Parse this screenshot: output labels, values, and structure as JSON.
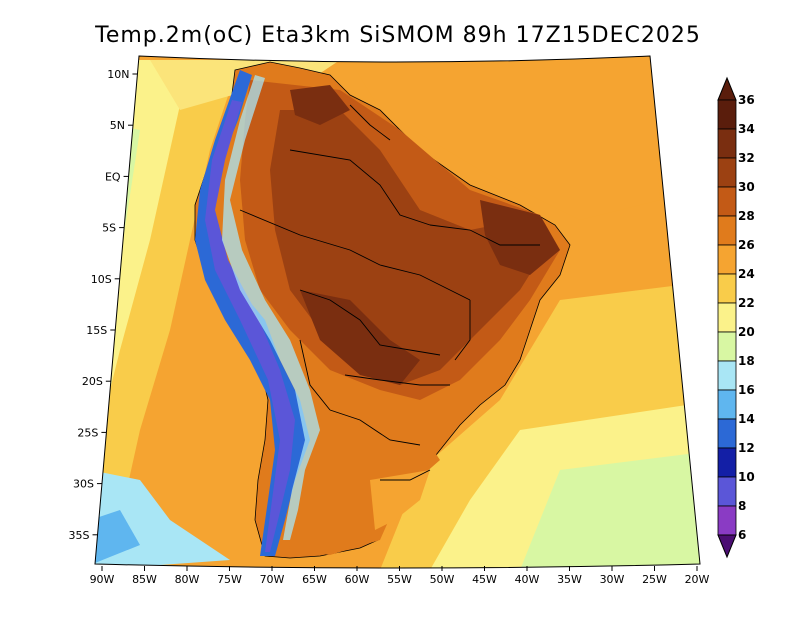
{
  "title": "Temp.2m(oC) Eta3km SiSMOM 89h 17Z15DEC2025",
  "lat_ticks": [
    "10N",
    "5N",
    "EQ",
    "5S",
    "10S",
    "15S",
    "20S",
    "25S",
    "30S",
    "35S"
  ],
  "lon_ticks": [
    "90W",
    "85W",
    "80W",
    "75W",
    "70W",
    "65W",
    "60W",
    "55W",
    "50W",
    "45W",
    "40W",
    "35W",
    "30W",
    "25W",
    "20W"
  ],
  "colorbar": {
    "labels": [
      "36",
      "34",
      "32",
      "30",
      "28",
      "26",
      "24",
      "22",
      "20",
      "18",
      "16",
      "14",
      "12",
      "10",
      "8",
      "6"
    ],
    "colors": [
      "#5a1d0c",
      "#7a2e10",
      "#9c4112",
      "#c35a16",
      "#e07b1c",
      "#f5a431",
      "#f9cc4a",
      "#fbf28a",
      "#d8f7a3",
      "#a9e6f5",
      "#5fb6ef",
      "#2c69d6",
      "#131fa6",
      "#5b56d8",
      "#8a3bc4",
      "#4b0e73"
    ]
  },
  "map_colors": {
    "ocean_warm": "#f5a431",
    "ocean_mid": "#fbe47a",
    "ocean_cool": "#d8f7a3",
    "ocean_cold": "#a9e6f5",
    "land_hot": "#c35a16",
    "land_hotter": "#9c4112",
    "land_max": "#7a2e10",
    "andes_cold": "#2c69d6"
  }
}
